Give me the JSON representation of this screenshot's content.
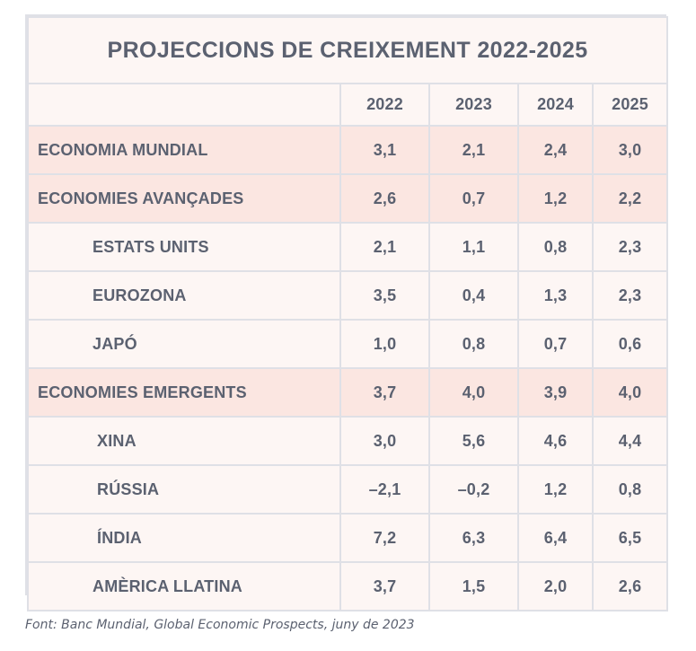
{
  "chart_data": {
    "type": "table",
    "title": "PROJECCIONS DE CREIXEMENT 2022-2025",
    "columns": [
      "2022",
      "2023",
      "2024",
      "2025"
    ],
    "rows": [
      {
        "label": "ECONOMIA MUNDIAL",
        "level": "top",
        "values": [
          "3,1",
          "2,1",
          "2,4",
          "3,0"
        ]
      },
      {
        "label": "ECONOMIES AVANÇADES",
        "level": "top",
        "values": [
          "2,6",
          "0,7",
          "1,2",
          "2,2"
        ]
      },
      {
        "label": "ESTATS UNITS",
        "level": "sub",
        "values": [
          "2,1",
          "1,1",
          "0,8",
          "2,3"
        ]
      },
      {
        "label": "EUROZONA",
        "level": "sub",
        "values": [
          "3,5",
          "0,4",
          "1,3",
          "2,3"
        ]
      },
      {
        "label": "JAPÓ",
        "level": "sub",
        "values": [
          "1,0",
          "0,8",
          "0,7",
          "0,6"
        ]
      },
      {
        "label": "ECONOMIES EMERGENTS",
        "level": "top",
        "values": [
          "3,7",
          "4,0",
          "3,9",
          "4,0"
        ]
      },
      {
        "label": "XINA",
        "level": "sub2",
        "values": [
          "3,0",
          "5,6",
          "4,6",
          "4,4"
        ]
      },
      {
        "label": "RÚSSIA",
        "level": "sub2",
        "values": [
          "–2,1",
          "–0,2",
          "1,2",
          "0,8"
        ]
      },
      {
        "label": "ÍNDIA",
        "level": "sub2",
        "values": [
          "7,2",
          "6,3",
          "6,4",
          "6,5"
        ]
      },
      {
        "label": "AMÈRICA LLATINA",
        "level": "sub",
        "values": [
          "3,7",
          "1,5",
          "2,0",
          "2,6"
        ]
      }
    ]
  },
  "source": "Font: Banc Mundial, Global Economic Prospects, juny de 2023",
  "colors": {
    "text": "#5b6170",
    "aggregate_row": "#fbe6e1",
    "row": "#fdf6f4",
    "grid": "#dfe0e6"
  }
}
